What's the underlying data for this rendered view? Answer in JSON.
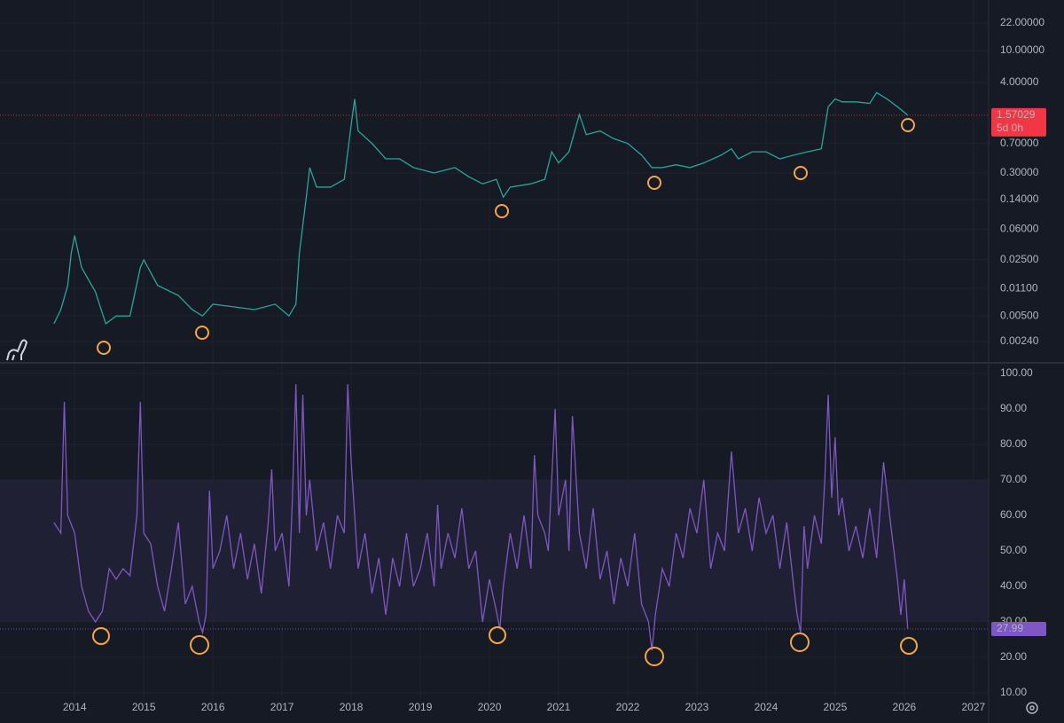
{
  "chart_data": [
    {
      "type": "line",
      "log_scale": true,
      "grid": true,
      "countdown": "5d 0h",
      "xlim": [
        2012.92,
        2027.22
      ],
      "ylim": [
        0.00134,
        42.5
      ],
      "yticks": [
        {
          "value": 22,
          "label": "22.00000"
        },
        {
          "value": 10,
          "label": "10.00000"
        },
        {
          "value": 4,
          "label": "4.00000"
        },
        {
          "value": 0.7,
          "label": "0.70000"
        },
        {
          "value": 0.3,
          "label": "0.30000"
        },
        {
          "value": 0.14,
          "label": "0.14000"
        },
        {
          "value": 0.06,
          "label": "0.06000"
        },
        {
          "value": 0.025,
          "label": "0.02500"
        },
        {
          "value": 0.011,
          "label": "0.01100"
        },
        {
          "value": 0.005,
          "label": "0.00500"
        },
        {
          "value": 0.0024,
          "label": "0.00240"
        }
      ],
      "series": [
        {
          "color": "#26a69a",
          "last_color": "#f23645",
          "x": [
            2013.7,
            2013.8,
            2013.9,
            2013.95,
            2014.0,
            2014.1,
            2014.3,
            2014.45,
            2014.6,
            2014.8,
            2014.95,
            2015.0,
            2015.2,
            2015.5,
            2015.7,
            2015.85,
            2016.0,
            2016.3,
            2016.6,
            2016.9,
            2017.1,
            2017.2,
            2017.25,
            2017.35,
            2017.4,
            2017.5,
            2017.7,
            2017.9,
            2018.0,
            2018.05,
            2018.1,
            2018.3,
            2018.5,
            2018.7,
            2018.9,
            2019.2,
            2019.5,
            2019.7,
            2019.9,
            2020.1,
            2020.2,
            2020.3,
            2020.6,
            2020.8,
            2020.9,
            2021.0,
            2021.15,
            2021.3,
            2021.4,
            2021.6,
            2021.8,
            2022.0,
            2022.2,
            2022.35,
            2022.5,
            2022.7,
            2022.9,
            2023.1,
            2023.35,
            2023.5,
            2023.6,
            2023.8,
            2024.0,
            2024.2,
            2024.4,
            2024.6,
            2024.8,
            2024.9,
            2025.0,
            2025.1,
            2025.3,
            2025.5,
            2025.6,
            2025.75,
            2025.9,
            2026.05
          ],
          "values": [
            0.004,
            0.006,
            0.012,
            0.03,
            0.05,
            0.02,
            0.01,
            0.004,
            0.005,
            0.005,
            0.02,
            0.025,
            0.012,
            0.009,
            0.006,
            0.005,
            0.007,
            0.0065,
            0.006,
            0.007,
            0.005,
            0.007,
            0.03,
            0.15,
            0.35,
            0.2,
            0.2,
            0.25,
            1.2,
            2.5,
            1.0,
            0.7,
            0.45,
            0.45,
            0.35,
            0.3,
            0.35,
            0.27,
            0.22,
            0.25,
            0.15,
            0.2,
            0.22,
            0.25,
            0.55,
            0.4,
            0.55,
            1.6,
            0.9,
            1.0,
            0.8,
            0.7,
            0.5,
            0.35,
            0.35,
            0.38,
            0.35,
            0.4,
            0.5,
            0.6,
            0.45,
            0.55,
            0.55,
            0.45,
            0.5,
            0.55,
            0.6,
            2.0,
            2.5,
            2.3,
            2.3,
            2.2,
            3.0,
            2.5,
            2.0,
            1.57029
          ]
        }
      ]
    },
    {
      "type": "line",
      "grid": true,
      "xlim": [
        2012.92,
        2027.22
      ],
      "ylim": [
        7.75,
        102.75
      ],
      "band": [
        30,
        70
      ],
      "midline": 50,
      "xticks": [
        2014,
        2015,
        2016,
        2017,
        2018,
        2019,
        2020,
        2021,
        2022,
        2023,
        2024,
        2025,
        2026,
        2027
      ],
      "yticks": [
        {
          "value": 100,
          "label": "100.00"
        },
        {
          "value": 90,
          "label": "90.00"
        },
        {
          "value": 80,
          "label": "80.00"
        },
        {
          "value": 70,
          "label": "70.00"
        },
        {
          "value": 60,
          "label": "60.00"
        },
        {
          "value": 50,
          "label": "50.00"
        },
        {
          "value": 40,
          "label": "40.00"
        },
        {
          "value": 30,
          "label": "30.00"
        },
        {
          "value": 20,
          "label": "20.00"
        },
        {
          "value": 10,
          "label": "10.00"
        }
      ],
      "series": [
        {
          "color": "#7e57c2",
          "last_color": "#7e57c2",
          "x": [
            2013.7,
            2013.8,
            2013.85,
            2013.9,
            2014.0,
            2014.1,
            2014.2,
            2014.3,
            2014.4,
            2014.5,
            2014.6,
            2014.7,
            2014.8,
            2014.9,
            2014.95,
            2015.0,
            2015.1,
            2015.2,
            2015.3,
            2015.4,
            2015.5,
            2015.6,
            2015.7,
            2015.8,
            2015.85,
            2015.9,
            2015.95,
            2016.0,
            2016.1,
            2016.2,
            2016.3,
            2016.4,
            2016.5,
            2016.6,
            2016.7,
            2016.8,
            2016.85,
            2016.9,
            2017.0,
            2017.1,
            2017.15,
            2017.2,
            2017.25,
            2017.3,
            2017.35,
            2017.4,
            2017.5,
            2017.6,
            2017.7,
            2017.8,
            2017.9,
            2017.95,
            2018.0,
            2018.1,
            2018.2,
            2018.3,
            2018.4,
            2018.5,
            2018.6,
            2018.7,
            2018.8,
            2018.9,
            2019.0,
            2019.1,
            2019.2,
            2019.25,
            2019.3,
            2019.4,
            2019.5,
            2019.6,
            2019.7,
            2019.8,
            2019.9,
            2020.0,
            2020.1,
            2020.15,
            2020.2,
            2020.3,
            2020.4,
            2020.5,
            2020.6,
            2020.65,
            2020.7,
            2020.8,
            2020.85,
            2020.95,
            2021.0,
            2021.1,
            2021.15,
            2021.2,
            2021.3,
            2021.4,
            2021.5,
            2021.6,
            2021.7,
            2021.8,
            2021.9,
            2022.0,
            2022.1,
            2022.2,
            2022.3,
            2022.35,
            2022.4,
            2022.5,
            2022.6,
            2022.7,
            2022.8,
            2022.9,
            2023.0,
            2023.1,
            2023.2,
            2023.3,
            2023.4,
            2023.5,
            2023.6,
            2023.7,
            2023.8,
            2023.9,
            2024.0,
            2024.1,
            2024.2,
            2024.3,
            2024.4,
            2024.45,
            2024.5,
            2024.55,
            2024.6,
            2024.7,
            2024.8,
            2024.85,
            2024.9,
            2024.95,
            2025.0,
            2025.05,
            2025.1,
            2025.2,
            2025.3,
            2025.4,
            2025.5,
            2025.6,
            2025.7,
            2025.8,
            2025.85,
            2025.9,
            2025.95,
            2026.0,
            2026.05
          ],
          "values": [
            58,
            55,
            92,
            60,
            55,
            40,
            33,
            30,
            33,
            45,
            42,
            45,
            43,
            60,
            92,
            55,
            52,
            40,
            33,
            45,
            58,
            35,
            40,
            30,
            27,
            32,
            67,
            45,
            50,
            60,
            45,
            55,
            42,
            52,
            38,
            58,
            73,
            50,
            55,
            40,
            65,
            97,
            55,
            94,
            60,
            70,
            50,
            58,
            45,
            60,
            55,
            97,
            75,
            45,
            55,
            38,
            48,
            32,
            48,
            40,
            55,
            40,
            45,
            55,
            40,
            63,
            45,
            55,
            48,
            62,
            45,
            50,
            30,
            42,
            33,
            28,
            40,
            55,
            45,
            60,
            45,
            77,
            60,
            55,
            50,
            90,
            60,
            70,
            50,
            88,
            55,
            45,
            62,
            42,
            50,
            35,
            48,
            40,
            55,
            35,
            30,
            22,
            32,
            45,
            40,
            55,
            48,
            62,
            55,
            70,
            45,
            55,
            50,
            78,
            55,
            62,
            50,
            65,
            55,
            60,
            45,
            58,
            40,
            32,
            27,
            57,
            45,
            60,
            52,
            70,
            94,
            65,
            82,
            60,
            65,
            50,
            57,
            48,
            62,
            48,
            75,
            58,
            50,
            42,
            32,
            42,
            27.99
          ]
        }
      ]
    }
  ]
}
